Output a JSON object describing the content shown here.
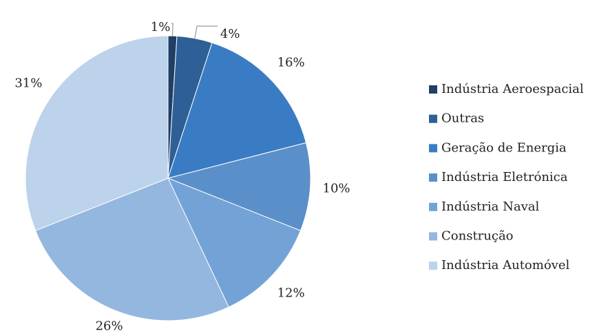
{
  "chart_data": {
    "type": "pie",
    "categories": [
      "Indústria Aeroespacial",
      "Outras",
      "Geração de Energia",
      "Indústria Eletrónica",
      "Indústria Naval",
      "Construção",
      "Indústria Automóvel"
    ],
    "values": [
      1,
      4,
      16,
      10,
      12,
      26,
      31
    ],
    "value_labels": [
      "1%",
      "4%",
      "16%",
      "10%",
      "12%",
      "26%",
      "31%"
    ],
    "colors": [
      "#1f3f66",
      "#2e5f96",
      "#3a7cc4",
      "#5b8fca",
      "#73a3d6",
      "#93b7df",
      "#bdd2eb"
    ],
    "legend": "right"
  }
}
